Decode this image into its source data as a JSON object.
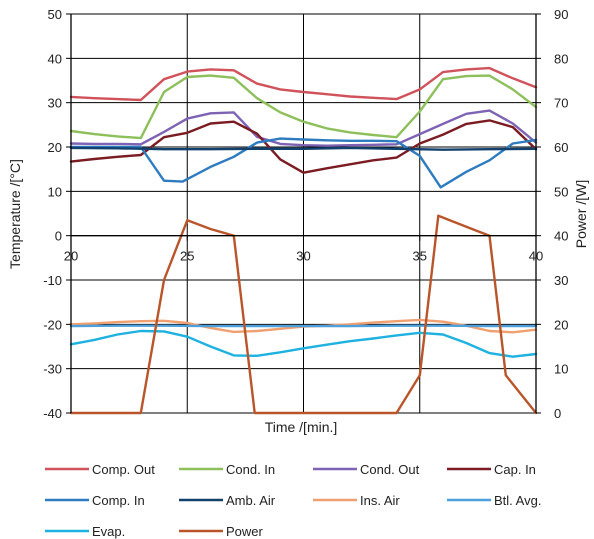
{
  "chart_data": {
    "type": "line",
    "xlabel": "Time /[min.]",
    "ylabel_left": "Temperature /[°C]",
    "ylabel_right": "Power /[W]",
    "xlim": [
      20,
      40
    ],
    "ylim_left": [
      -40,
      50
    ],
    "ylim_right": [
      0,
      90
    ],
    "x_ticks": [
      "20",
      "25",
      "30",
      "35",
      "40"
    ],
    "y_ticks_left": [
      "50",
      "40",
      "30",
      "20",
      "10",
      "0",
      "-10",
      "-20",
      "-30",
      "-40"
    ],
    "y_ticks_right": [
      "90",
      "80",
      "70",
      "60",
      "50",
      "40",
      "30",
      "20",
      "10",
      "0"
    ],
    "grid": true,
    "legend_position": "bottom",
    "series": [
      {
        "name": "Comp. Out",
        "color": "#d0525a",
        "axis": "left",
        "x": [
          20,
          21,
          22,
          23,
          24,
          25,
          26,
          27,
          28,
          29,
          30,
          31,
          32,
          33,
          34,
          35,
          36,
          37,
          38,
          39,
          40
        ],
        "y": [
          31.3,
          31.0,
          30.8,
          30.6,
          35.3,
          37.0,
          37.5,
          37.3,
          34.3,
          33.0,
          32.4,
          31.9,
          31.4,
          31.1,
          30.8,
          33.0,
          36.9,
          37.5,
          37.8,
          35.5,
          33.5
        ]
      },
      {
        "name": "Cond. In",
        "color": "#8dbf5a",
        "axis": "left",
        "x": [
          20,
          21,
          22,
          23,
          24,
          25,
          26,
          27,
          28,
          29,
          30,
          31,
          32,
          33,
          34,
          35,
          36,
          37,
          38,
          39,
          40
        ],
        "y": [
          23.6,
          22.9,
          22.4,
          22.0,
          32.4,
          35.8,
          36.1,
          35.6,
          31.0,
          27.8,
          25.7,
          24.2,
          23.3,
          22.7,
          22.2,
          28.0,
          35.3,
          36.0,
          36.1,
          33.0,
          29.0
        ]
      },
      {
        "name": "Cond. Out",
        "color": "#7e63b5",
        "axis": "left",
        "x": [
          20,
          21,
          22,
          23,
          24,
          25,
          26,
          27,
          28,
          29,
          30,
          31,
          32,
          33,
          34,
          35,
          36,
          37,
          38,
          39,
          40
        ],
        "y": [
          20.8,
          20.7,
          20.7,
          20.6,
          23.4,
          26.4,
          27.6,
          27.8,
          22.3,
          20.7,
          20.4,
          20.3,
          20.4,
          20.5,
          20.6,
          22.9,
          25.2,
          27.5,
          28.2,
          25.3,
          21.0
        ]
      },
      {
        "name": "Cap. In",
        "color": "#7a1c22",
        "axis": "left",
        "x": [
          20,
          21,
          22,
          23,
          24,
          25,
          26,
          27,
          28,
          29,
          30,
          31,
          32,
          33,
          34,
          35,
          36,
          37,
          38,
          39,
          40
        ],
        "y": [
          16.7,
          17.3,
          17.8,
          18.2,
          22.2,
          23.2,
          25.3,
          25.7,
          23.0,
          17.2,
          14.2,
          15.2,
          16.1,
          17.0,
          17.6,
          20.8,
          22.8,
          25.2,
          26.0,
          24.5,
          19.5
        ]
      },
      {
        "name": "Comp. In",
        "color": "#2f7bc0",
        "axis": "left",
        "x": [
          20,
          21,
          22,
          23,
          24,
          24.8,
          26,
          27,
          28,
          29,
          30,
          31,
          32,
          33,
          34,
          35,
          35.9,
          37,
          38,
          39,
          40
        ],
        "y": [
          20.0,
          20.0,
          20.0,
          20.0,
          12.4,
          12.2,
          15.5,
          17.8,
          21.0,
          21.9,
          21.7,
          21.5,
          21.4,
          21.4,
          21.3,
          18.0,
          10.9,
          14.4,
          17.0,
          20.8,
          21.6
        ]
      },
      {
        "name": "Amb. Air",
        "color": "#12416e",
        "axis": "left",
        "x": [
          20,
          22,
          24,
          26,
          28,
          30,
          32,
          34,
          36,
          38,
          40
        ],
        "y": [
          19.8,
          19.7,
          19.5,
          19.5,
          19.6,
          19.6,
          19.8,
          19.6,
          19.4,
          19.5,
          19.6
        ]
      },
      {
        "name": "Ins. Air",
        "color": "#f0a070",
        "axis": "left",
        "x": [
          20,
          21,
          22,
          23,
          24,
          25,
          26,
          27,
          28,
          29,
          30,
          31,
          32,
          33,
          34,
          35,
          36,
          37,
          38,
          39,
          40
        ],
        "y": [
          -20.0,
          -19.8,
          -19.5,
          -19.3,
          -19.2,
          -19.7,
          -20.8,
          -21.7,
          -21.5,
          -21.0,
          -20.5,
          -20.3,
          -20.0,
          -19.6,
          -19.3,
          -19.0,
          -19.4,
          -20.3,
          -21.5,
          -21.8,
          -21.2
        ]
      },
      {
        "name": "Btl. Avg.",
        "color": "#4ea0dc",
        "axis": "left",
        "x": [
          20,
          22,
          24,
          26,
          28,
          30,
          32,
          34,
          36,
          38,
          40
        ],
        "y": [
          -20.4,
          -20.3,
          -20.3,
          -20.4,
          -20.4,
          -20.4,
          -20.4,
          -20.3,
          -20.3,
          -20.4,
          -20.4
        ]
      },
      {
        "name": "Evap.",
        "color": "#1fb1e0",
        "axis": "left",
        "x": [
          20,
          21,
          22,
          23,
          24,
          25,
          26,
          27,
          28,
          29,
          30,
          31,
          32,
          33,
          34,
          35,
          36,
          37,
          38,
          39,
          40
        ],
        "y": [
          -24.5,
          -23.5,
          -22.3,
          -21.5,
          -21.6,
          -22.8,
          -25.0,
          -27.0,
          -27.1,
          -26.3,
          -25.4,
          -24.6,
          -23.8,
          -23.2,
          -22.5,
          -21.9,
          -22.3,
          -24.2,
          -26.5,
          -27.3,
          -26.7
        ]
      },
      {
        "name": "Power",
        "color": "#b9552a",
        "axis": "right",
        "x": [
          20,
          21,
          22,
          23,
          24,
          25,
          26,
          27,
          27.9,
          29,
          30,
          31,
          32,
          33,
          34,
          35,
          35.8,
          37,
          38,
          38.7,
          40
        ],
        "y": [
          0.0,
          0.0,
          0.0,
          0.0,
          30.0,
          43.5,
          41.5,
          40.0,
          0.0,
          0.0,
          0.0,
          0.0,
          0.0,
          0.0,
          0.0,
          8.5,
          44.5,
          42.0,
          40.0,
          8.5,
          0.0
        ]
      }
    ]
  }
}
